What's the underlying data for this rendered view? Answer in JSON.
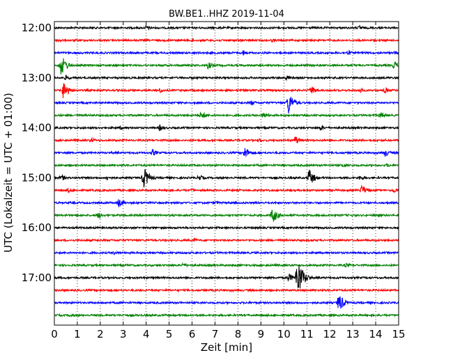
{
  "chart_data": {
    "type": "line",
    "title": "BW.BE1..HHZ 2019-11-04",
    "xlabel": "Zeit  [min]",
    "ylabel": "UTC (Lokalzeit = UTC + 01:00)",
    "xlim": [
      0,
      15
    ],
    "x_ticks": [
      0,
      1,
      2,
      3,
      4,
      5,
      6,
      7,
      8,
      9,
      10,
      11,
      12,
      13,
      14,
      15
    ],
    "x_grid": "dotted vertical lines at each minute",
    "y_tick_labels": [
      "12:00",
      "13:00",
      "14:00",
      "15:00",
      "16:00",
      "17:00"
    ],
    "trace_interval_minutes": 15,
    "trace_colors": [
      "#000000",
      "#ff0000",
      "#0000ff",
      "#008000"
    ],
    "series": [
      {
        "start": "12:00",
        "color": "#000000",
        "end_minute": 15,
        "events": [
          {
            "t": 4.0,
            "amp": 4
          },
          {
            "t": 13.3,
            "amp": 4
          }
        ]
      },
      {
        "start": "12:15",
        "color": "#ff0000",
        "end_minute": 15,
        "events": [
          {
            "t": 0.2,
            "amp": 3
          },
          {
            "t": 6.0,
            "amp": 3
          },
          {
            "t": 9.5,
            "amp": 3
          }
        ]
      },
      {
        "start": "12:30",
        "color": "#0000ff",
        "end_minute": 15,
        "events": [
          {
            "t": 8.2,
            "amp": 5
          },
          {
            "t": 12.8,
            "amp": 4
          },
          {
            "t": 14.8,
            "amp": 3
          }
        ]
      },
      {
        "start": "12:45",
        "color": "#008000",
        "end_minute": 15,
        "events": [
          {
            "t": 0.3,
            "amp": 16
          },
          {
            "t": 6.7,
            "amp": 6
          },
          {
            "t": 14.8,
            "amp": 6
          }
        ]
      },
      {
        "start": "13:00",
        "color": "#000000",
        "end_minute": 15,
        "events": [
          {
            "t": 0.5,
            "amp": 4
          },
          {
            "t": 10.1,
            "amp": 4
          }
        ]
      },
      {
        "start": "13:15",
        "color": "#ff0000",
        "end_minute": 15,
        "events": [
          {
            "t": 0.4,
            "amp": 14
          },
          {
            "t": 4.6,
            "amp": 4
          },
          {
            "t": 11.2,
            "amp": 7
          },
          {
            "t": 13.3,
            "amp": 4
          },
          {
            "t": 14.4,
            "amp": 5
          }
        ]
      },
      {
        "start": "13:30",
        "color": "#0000ff",
        "end_minute": 15,
        "events": [
          {
            "t": 10.2,
            "amp": 17
          },
          {
            "t": 8.6,
            "amp": 4
          }
        ]
      },
      {
        "start": "13:45",
        "color": "#008000",
        "end_minute": 15,
        "events": [
          {
            "t": 6.4,
            "amp": 6
          },
          {
            "t": 9.1,
            "amp": 5
          },
          {
            "t": 14.2,
            "amp": 5
          }
        ]
      },
      {
        "start": "14:00",
        "color": "#000000",
        "end_minute": 15,
        "events": [
          {
            "t": 4.6,
            "amp": 5
          },
          {
            "t": 2.9,
            "amp": 3
          },
          {
            "t": 11.6,
            "amp": 4
          }
        ]
      },
      {
        "start": "14:15",
        "color": "#ff0000",
        "end_minute": 15,
        "events": [
          {
            "t": 1.6,
            "amp": 4
          },
          {
            "t": 10.5,
            "amp": 7
          },
          {
            "t": 8.9,
            "amp": 3
          }
        ]
      },
      {
        "start": "14:30",
        "color": "#0000ff",
        "end_minute": 15,
        "events": [
          {
            "t": 4.3,
            "amp": 5
          },
          {
            "t": 8.3,
            "amp": 9
          },
          {
            "t": 14.4,
            "amp": 6
          }
        ]
      },
      {
        "start": "14:45",
        "color": "#008000",
        "end_minute": 15,
        "events": [
          {
            "t": 12.6,
            "amp": 4
          },
          {
            "t": 14.5,
            "amp": 3
          }
        ]
      },
      {
        "start": "15:00",
        "color": "#000000",
        "end_minute": 15,
        "events": [
          {
            "t": 0.3,
            "amp": 5
          },
          {
            "t": 2.3,
            "amp": 4
          },
          {
            "t": 3.9,
            "amp": 16
          },
          {
            "t": 6.3,
            "amp": 5
          },
          {
            "t": 11.1,
            "amp": 13
          },
          {
            "t": 13.3,
            "amp": 4
          }
        ]
      },
      {
        "start": "15:15",
        "color": "#ff0000",
        "end_minute": 15,
        "events": [
          {
            "t": 0.6,
            "amp": 4
          },
          {
            "t": 6.0,
            "amp": 3
          },
          {
            "t": 13.4,
            "amp": 8
          },
          {
            "t": 14.8,
            "amp": 4
          }
        ]
      },
      {
        "start": "15:30",
        "color": "#0000ff",
        "end_minute": 15,
        "events": [
          {
            "t": 2.8,
            "amp": 7
          },
          {
            "t": 7.0,
            "amp": 3
          }
        ]
      },
      {
        "start": "15:45",
        "color": "#008000",
        "end_minute": 15,
        "events": [
          {
            "t": 1.9,
            "amp": 5
          },
          {
            "t": 9.5,
            "amp": 12
          }
        ]
      },
      {
        "start": "16:00",
        "color": "#000000",
        "end_minute": 15,
        "events": [
          {
            "t": 14.8,
            "amp": 2
          }
        ]
      },
      {
        "start": "16:15",
        "color": "#ff0000",
        "end_minute": 15,
        "events": [
          {
            "t": 6.1,
            "amp": 3
          }
        ]
      },
      {
        "start": "16:30",
        "color": "#0000ff",
        "end_minute": 15,
        "events": [
          {
            "t": 2.6,
            "amp": 3
          }
        ]
      },
      {
        "start": "16:45",
        "color": "#008000",
        "end_minute": 15,
        "events": [
          {
            "t": 5.6,
            "amp": 4
          },
          {
            "t": 12.7,
            "amp": 4
          }
        ]
      },
      {
        "start": "17:00",
        "color": "#000000",
        "end_minute": 15,
        "events": [
          {
            "t": 10.6,
            "amp": 30
          },
          {
            "t": 10.2,
            "amp": 7
          }
        ]
      },
      {
        "start": "17:15",
        "color": "#ff0000",
        "end_minute": 15,
        "events": []
      },
      {
        "start": "17:30",
        "color": "#0000ff",
        "end_minute": 15,
        "events": [
          {
            "t": 12.4,
            "amp": 14
          },
          {
            "t": 3.0,
            "amp": 2
          }
        ]
      },
      {
        "start": "17:45",
        "color": "#008000",
        "end_minute": 15,
        "events": [
          {
            "t": 0.7,
            "amp": 3
          }
        ]
      }
    ]
  }
}
